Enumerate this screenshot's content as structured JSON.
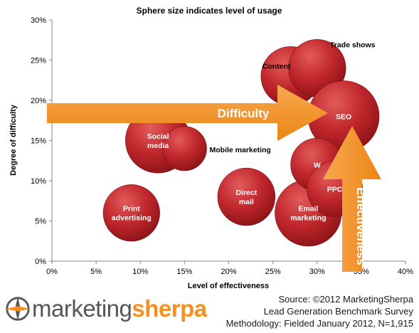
{
  "chart_data": {
    "type": "bubble",
    "title": "Sphere size indicates level of usage",
    "xlabel": "Level of effectiveness",
    "ylabel": "Degree of difficulty",
    "xlim": [
      0,
      40
    ],
    "ylim": [
      0,
      30
    ],
    "x_ticks": [
      "0%",
      "5%",
      "10%",
      "15%",
      "20%",
      "25%",
      "30%",
      "35%",
      "40%"
    ],
    "y_ticks": [
      "0%",
      "5%",
      "10%",
      "15%",
      "20%",
      "25%",
      "30%"
    ],
    "grid": false,
    "points": [
      {
        "label": "Print advertising",
        "lines": [
          "Print",
          "advertising"
        ],
        "x": 9,
        "y": 6,
        "size": 31
      },
      {
        "label": "Social media",
        "lines": [
          "Social",
          "media"
        ],
        "x": 12,
        "y": 15,
        "size": 41
      },
      {
        "label": "Mobile marketing",
        "lines": [
          "Mobile marketing"
        ],
        "x": 15,
        "y": 14,
        "size": 19,
        "external": true
      },
      {
        "label": "Direct mail",
        "lines": [
          "Direct",
          "mail"
        ],
        "x": 22,
        "y": 8,
        "size": 32
      },
      {
        "label": "Email marketing",
        "lines": [
          "Email",
          "marketing"
        ],
        "x": 29,
        "y": 6,
        "size": 43
      },
      {
        "label": "Content",
        "lines": [
          "Content"
        ],
        "x": 27,
        "y": 23,
        "size": 34,
        "external": true
      },
      {
        "label": "Trade shows",
        "lines": [
          "Trade shows"
        ],
        "x": 30,
        "y": 24,
        "size": 32,
        "external": true
      },
      {
        "label": "SEO",
        "lines": [
          "SEO"
        ],
        "x": 33,
        "y": 18,
        "size": 49
      },
      {
        "label": "Webinars",
        "lines": [
          "W"
        ],
        "x": 30,
        "y": 12,
        "size": 27
      },
      {
        "label": "PPC",
        "lines": [
          "PPC"
        ],
        "x": 32,
        "y": 9,
        "size": 30
      }
    ],
    "annotations": [
      "Difficulty",
      "Effectiveness"
    ]
  },
  "colors": {
    "bubble": "#c0272d",
    "bubble_highlight": "#e25b5b",
    "arrow": "#f4901e",
    "logo_orange": "#f4901e",
    "logo_gray": "#555555"
  },
  "logo": {
    "part1": "marketing",
    "part2": "sherpa"
  },
  "source": {
    "line1": "Source: ©2012 MarketingSherpa",
    "line2": "Lead Generation Benchmark Survey",
    "line3": "Methodology: Fielded January 2012, N=1,915"
  }
}
